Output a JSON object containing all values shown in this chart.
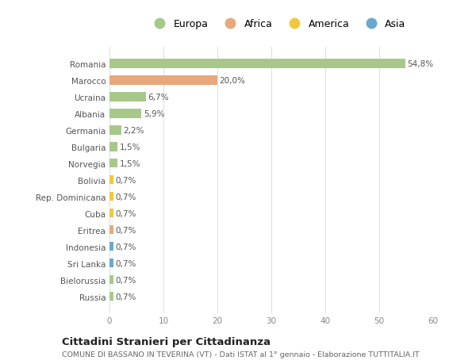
{
  "countries": [
    "Romania",
    "Marocco",
    "Ucraina",
    "Albania",
    "Germania",
    "Bulgaria",
    "Norvegia",
    "Bolivia",
    "Rep. Dominicana",
    "Cuba",
    "Eritrea",
    "Indonesia",
    "Sri Lanka",
    "Bielorussia",
    "Russia"
  ],
  "values": [
    54.8,
    20.0,
    6.7,
    5.9,
    2.2,
    1.5,
    1.5,
    0.7,
    0.7,
    0.7,
    0.7,
    0.7,
    0.7,
    0.7,
    0.7
  ],
  "labels": [
    "54,8%",
    "20,0%",
    "6,7%",
    "5,9%",
    "2,2%",
    "1,5%",
    "1,5%",
    "0,7%",
    "0,7%",
    "0,7%",
    "0,7%",
    "0,7%",
    "0,7%",
    "0,7%",
    "0,7%"
  ],
  "continents": [
    "Europa",
    "Africa",
    "Europa",
    "Europa",
    "Europa",
    "Europa",
    "Europa",
    "America",
    "America",
    "America",
    "Africa",
    "Asia",
    "Asia",
    "Europa",
    "Europa"
  ],
  "continent_colors": {
    "Europa": "#a8c88a",
    "Africa": "#e8a87c",
    "America": "#f0c840",
    "Asia": "#6aa8d0"
  },
  "legend_labels": [
    "Europa",
    "Africa",
    "America",
    "Asia"
  ],
  "legend_colors": [
    "#a8c88a",
    "#e8a87c",
    "#f0c840",
    "#6aa8d0"
  ],
  "xlim": [
    0,
    60
  ],
  "xticks": [
    0,
    10,
    20,
    30,
    40,
    50,
    60
  ],
  "title": "Cittadini Stranieri per Cittadinanza",
  "subtitle": "COMUNE DI BASSANO IN TEVERINA (VT) - Dati ISTAT al 1° gennaio - Elaborazione TUTTITALIA.IT",
  "background_color": "#ffffff",
  "bar_height": 0.55,
  "grid_color": "#e0e0e0"
}
